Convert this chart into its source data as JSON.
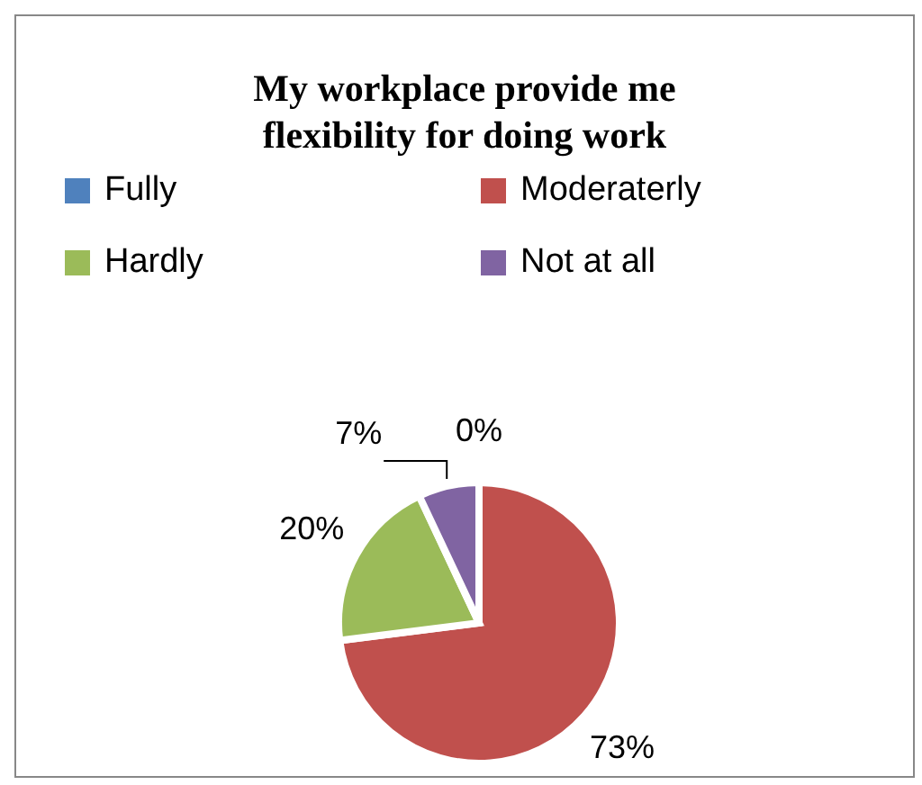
{
  "chart_data": {
    "type": "pie",
    "title": "My workplace provide me flexibility for doing work",
    "categories": [
      "Fully",
      "Moderaterly",
      "Hardly",
      "Not at all"
    ],
    "values": [
      0,
      73,
      20,
      7
    ],
    "colors": [
      "#4f81bd",
      "#c0504d",
      "#9bbb59",
      "#8064a2"
    ],
    "value_labels": [
      "0%",
      "73%",
      "20%",
      "7%"
    ],
    "legend": "top"
  }
}
